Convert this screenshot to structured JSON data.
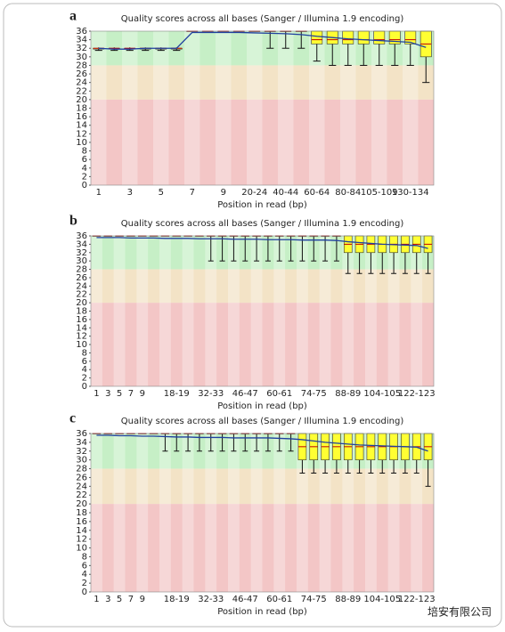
{
  "chart_data": [
    {
      "type": "box",
      "panel": "a",
      "title": "Quality scores across all bases (Sanger / Illumina 1.9 encoding)",
      "x_label": "Position in read (bp)",
      "categories": [
        "1",
        null,
        "3",
        null,
        "5",
        null,
        "7",
        null,
        "9",
        null,
        "20-24",
        null,
        "40-44",
        null,
        "60-64",
        null,
        "80-84",
        null,
        "105-109",
        null,
        "130-134",
        null
      ],
      "boxes": {
        "low": [
          31.5,
          31.5,
          31.5,
          31.5,
          31.5,
          31.5,
          36,
          36,
          36,
          36,
          36,
          32,
          32,
          32,
          29,
          28,
          28,
          28,
          28,
          28,
          28,
          24
        ],
        "q1": [
          31.8,
          31.8,
          31.8,
          31.8,
          31.8,
          31.8,
          36,
          36,
          36,
          36,
          36,
          36,
          36,
          36,
          33,
          33,
          33,
          33,
          33,
          33,
          33,
          30
        ],
        "median": [
          32,
          32,
          32,
          32,
          32,
          32,
          36,
          36,
          36,
          36,
          36,
          36,
          36,
          36,
          34,
          34,
          34,
          34,
          34,
          34,
          34,
          33
        ],
        "q3": [
          32,
          32,
          32,
          32,
          32,
          32,
          36,
          36,
          36,
          36,
          36,
          36,
          36,
          36,
          36,
          36,
          36,
          36,
          36,
          36,
          36,
          36
        ],
        "high": [
          32.2,
          32.2,
          32.2,
          32.2,
          32.2,
          32.2,
          36,
          36,
          36,
          36,
          36,
          36,
          36,
          36,
          36,
          36,
          36,
          36,
          36,
          36,
          36,
          36
        ],
        "mean": [
          32,
          31.8,
          31.8,
          32,
          32,
          32,
          35.7,
          35.7,
          35.7,
          35.7,
          35.6,
          35.5,
          35.4,
          35.2,
          34.8,
          34.5,
          34.2,
          34,
          33.8,
          33.6,
          33.4,
          32.2
        ]
      },
      "ylim": [
        0,
        36
      ],
      "yticks": [
        0,
        2,
        4,
        6,
        8,
        10,
        12,
        14,
        16,
        18,
        20,
        22,
        24,
        26,
        28,
        30,
        32,
        34,
        36
      ],
      "zones": [
        {
          "from": 28,
          "to": 36,
          "color": "#c6efc6"
        },
        {
          "from": 20,
          "to": 28,
          "color": "#f3e3c6"
        },
        {
          "from": 0,
          "to": 20,
          "color": "#f3c6c6"
        }
      ],
      "box_color": "#ffff33",
      "median_color": "#c00000",
      "mean_color": "#2040a0"
    },
    {
      "type": "box",
      "panel": "b",
      "title": "Quality scores across all bases (Sanger / Illumina 1.9 encoding)",
      "x_label": "Position in read (bp)",
      "categories": [
        "1",
        "3",
        "5",
        "7",
        "9",
        null,
        null,
        "18-19",
        null,
        null,
        "32-33",
        null,
        null,
        "46-47",
        null,
        null,
        "60-61",
        null,
        null,
        "74-75",
        null,
        null,
        "88-89",
        null,
        null,
        "104-105",
        null,
        null,
        "122-123",
        null
      ],
      "boxes": {
        "low": [
          36,
          36,
          36,
          36,
          36,
          36,
          36,
          36,
          36,
          36,
          30,
          30,
          30,
          30,
          30,
          30,
          30,
          30,
          30,
          30,
          30,
          30,
          27,
          27,
          27,
          27,
          27,
          27,
          27,
          27
        ],
        "q1": [
          36,
          36,
          36,
          36,
          36,
          36,
          36,
          36,
          36,
          36,
          36,
          36,
          36,
          36,
          36,
          36,
          36,
          36,
          36,
          36,
          36,
          36,
          32,
          32,
          32,
          32,
          32,
          32,
          32,
          32
        ],
        "median": [
          36,
          36,
          36,
          36,
          36,
          36,
          36,
          36,
          36,
          36,
          36,
          36,
          36,
          36,
          36,
          36,
          36,
          36,
          36,
          36,
          36,
          36,
          34,
          34,
          34,
          34,
          34,
          34,
          34,
          34
        ],
        "q3": [
          36,
          36,
          36,
          36,
          36,
          36,
          36,
          36,
          36,
          36,
          36,
          36,
          36,
          36,
          36,
          36,
          36,
          36,
          36,
          36,
          36,
          36,
          36,
          36,
          36,
          36,
          36,
          36,
          36,
          36
        ],
        "high": [
          36,
          36,
          36,
          36,
          36,
          36,
          36,
          36,
          36,
          36,
          36,
          36,
          36,
          36,
          36,
          36,
          36,
          36,
          36,
          36,
          36,
          36,
          36,
          36,
          36,
          36,
          36,
          36,
          36,
          36
        ],
        "mean": [
          35.6,
          35.6,
          35.6,
          35.5,
          35.5,
          35.5,
          35.4,
          35.4,
          35.4,
          35.3,
          35.3,
          35.3,
          35.2,
          35.2,
          35.2,
          35.1,
          35.1,
          35.1,
          35,
          35,
          35,
          34.9,
          34.6,
          34.4,
          34.2,
          34,
          33.9,
          33.8,
          33.7,
          33
        ]
      },
      "ylim": [
        0,
        36
      ],
      "yticks": [
        0,
        2,
        4,
        6,
        8,
        10,
        12,
        14,
        16,
        18,
        20,
        22,
        24,
        26,
        28,
        30,
        32,
        34,
        36
      ],
      "zones": [
        {
          "from": 28,
          "to": 36,
          "color": "#c6efc6"
        },
        {
          "from": 20,
          "to": 28,
          "color": "#f3e3c6"
        },
        {
          "from": 0,
          "to": 20,
          "color": "#f3c6c6"
        }
      ],
      "box_color": "#ffff33",
      "median_color": "#c00000",
      "mean_color": "#2040a0"
    },
    {
      "type": "box",
      "panel": "c",
      "title": "Quality scores across all bases (Sanger / Illumina 1.9 encoding)",
      "x_label": "Position in read (bp)",
      "categories": [
        "1",
        "3",
        "5",
        "7",
        "9",
        null,
        null,
        "18-19",
        null,
        null,
        "32-33",
        null,
        null,
        "46-47",
        null,
        null,
        "60-61",
        null,
        null,
        "74-75",
        null,
        null,
        "88-89",
        null,
        null,
        "104-105",
        null,
        null,
        "122-123",
        null
      ],
      "boxes": {
        "low": [
          36,
          36,
          36,
          36,
          36,
          36,
          32,
          32,
          32,
          32,
          32,
          32,
          32,
          32,
          32,
          32,
          32,
          32,
          27,
          27,
          27,
          27,
          27,
          27,
          27,
          27,
          27,
          27,
          27,
          24
        ],
        "q1": [
          36,
          36,
          36,
          36,
          36,
          36,
          36,
          36,
          36,
          36,
          36,
          36,
          36,
          36,
          36,
          36,
          36,
          36,
          30,
          30,
          30,
          30,
          30,
          30,
          30,
          30,
          30,
          30,
          30,
          30
        ],
        "median": [
          36,
          36,
          36,
          36,
          36,
          36,
          36,
          36,
          36,
          36,
          36,
          36,
          36,
          36,
          36,
          36,
          36,
          36,
          33,
          33,
          33,
          33,
          33,
          33,
          33,
          33,
          33,
          33,
          33,
          33
        ],
        "q3": [
          36,
          36,
          36,
          36,
          36,
          36,
          36,
          36,
          36,
          36,
          36,
          36,
          36,
          36,
          36,
          36,
          36,
          36,
          36,
          36,
          36,
          36,
          36,
          36,
          36,
          36,
          36,
          36,
          36,
          36
        ],
        "high": [
          36,
          36,
          36,
          36,
          36,
          36,
          36,
          36,
          36,
          36,
          36,
          36,
          36,
          36,
          36,
          36,
          36,
          36,
          36,
          36,
          36,
          36,
          36,
          36,
          36,
          36,
          36,
          36,
          36,
          36
        ],
        "mean": [
          35.6,
          35.6,
          35.5,
          35.5,
          35.4,
          35.4,
          35.3,
          35.2,
          35.2,
          35.1,
          35.1,
          35.1,
          35,
          35,
          35,
          35,
          34.9,
          34.8,
          34.6,
          34.3,
          34,
          33.8,
          33.6,
          33.4,
          33.3,
          33.2,
          33.1,
          33,
          32.9,
          32
        ]
      },
      "ylim": [
        0,
        36
      ],
      "yticks": [
        0,
        2,
        4,
        6,
        8,
        10,
        12,
        14,
        16,
        18,
        20,
        22,
        24,
        26,
        28,
        30,
        32,
        34,
        36
      ],
      "zones": [
        {
          "from": 28,
          "to": 36,
          "color": "#c6efc6"
        },
        {
          "from": 20,
          "to": 28,
          "color": "#f3e3c6"
        },
        {
          "from": 0,
          "to": 20,
          "color": "#f3c6c6"
        }
      ],
      "box_color": "#ffff33",
      "median_color": "#c00000",
      "mean_color": "#2040a0"
    }
  ],
  "watermark": "培安有限公司"
}
